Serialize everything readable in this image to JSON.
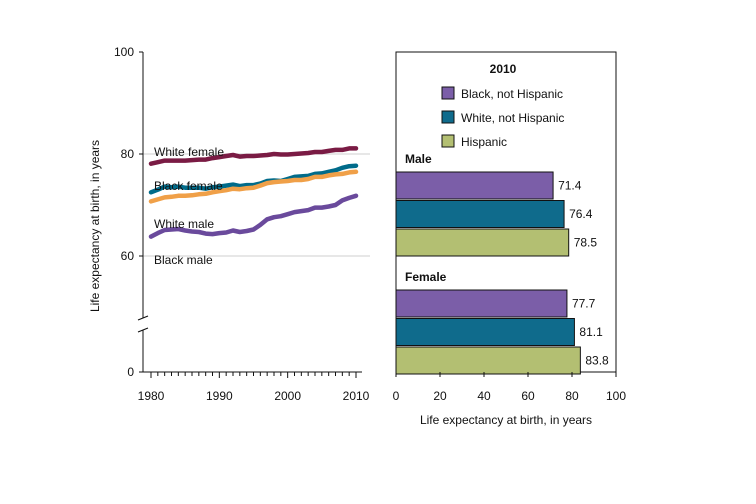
{
  "chart_data": [
    {
      "type": "line",
      "title": "",
      "xlabel": "",
      "ylabel": "Life expectancy at birth, in years",
      "xlim": [
        1980,
        2010
      ],
      "ylim": [
        0,
        100
      ],
      "axis_break": [
        0,
        50
      ],
      "x_ticks": [
        "1980",
        "1990",
        "2000",
        "2010"
      ],
      "y_ticks": [
        "0",
        "60",
        "80",
        "100"
      ],
      "gridlines_y": [
        60,
        80
      ],
      "series": [
        {
          "name": "White female",
          "color": "#7a1b44",
          "x": [
            1980,
            1981,
            1982,
            1983,
            1984,
            1985,
            1986,
            1987,
            1988,
            1989,
            1990,
            1991,
            1992,
            1993,
            1994,
            1995,
            1996,
            1997,
            1998,
            1999,
            2000,
            2001,
            2002,
            2003,
            2004,
            2005,
            2006,
            2007,
            2008,
            2009,
            2010
          ],
          "values": [
            78.1,
            78.4,
            78.7,
            78.7,
            78.7,
            78.7,
            78.8,
            78.9,
            78.9,
            79.2,
            79.4,
            79.6,
            79.8,
            79.5,
            79.6,
            79.6,
            79.7,
            79.8,
            80.0,
            79.9,
            79.9,
            80.0,
            80.1,
            80.2,
            80.4,
            80.4,
            80.6,
            80.8,
            80.8,
            81.1,
            81.1
          ]
        },
        {
          "name": "Black female",
          "color": "#006b8a",
          "x": [
            1980,
            1981,
            1982,
            1983,
            1984,
            1985,
            1986,
            1987,
            1988,
            1989,
            1990,
            1991,
            1992,
            1993,
            1994,
            1995,
            1996,
            1997,
            1998,
            1999,
            2000,
            2001,
            2002,
            2003,
            2004,
            2005,
            2006,
            2007,
            2008,
            2009,
            2010
          ],
          "values": [
            72.5,
            73.0,
            73.6,
            73.5,
            73.6,
            73.4,
            73.4,
            73.4,
            73.2,
            73.5,
            73.6,
            73.8,
            74.0,
            73.7,
            73.9,
            73.9,
            74.2,
            74.7,
            74.8,
            74.7,
            75.1,
            75.5,
            75.6,
            75.7,
            76.1,
            76.2,
            76.5,
            76.8,
            77.3,
            77.6,
            77.7
          ]
        },
        {
          "name": "White male",
          "color": "#f0a048",
          "x": [
            1980,
            1981,
            1982,
            1983,
            1984,
            1985,
            1986,
            1987,
            1988,
            1989,
            1990,
            1991,
            1992,
            1993,
            1994,
            1995,
            1996,
            1997,
            1998,
            1999,
            2000,
            2001,
            2002,
            2003,
            2004,
            2005,
            2006,
            2007,
            2008,
            2009,
            2010
          ],
          "values": [
            70.7,
            71.1,
            71.5,
            71.6,
            71.8,
            71.8,
            71.9,
            72.1,
            72.2,
            72.5,
            72.7,
            72.9,
            73.2,
            73.1,
            73.3,
            73.4,
            73.8,
            74.3,
            74.5,
            74.6,
            74.7,
            74.9,
            74.9,
            75.1,
            75.5,
            75.5,
            75.8,
            76.0,
            76.1,
            76.4,
            76.5
          ]
        },
        {
          "name": "Black male",
          "color": "#6a4a9c",
          "x": [
            1980,
            1981,
            1982,
            1983,
            1984,
            1985,
            1986,
            1987,
            1988,
            1989,
            1990,
            1991,
            1992,
            1993,
            1994,
            1995,
            1996,
            1997,
            1998,
            1999,
            2000,
            2001,
            2002,
            2003,
            2004,
            2005,
            2006,
            2007,
            2008,
            2009,
            2010
          ],
          "values": [
            63.8,
            64.5,
            65.1,
            65.2,
            65.3,
            65.0,
            64.8,
            64.7,
            64.4,
            64.3,
            64.5,
            64.6,
            65.0,
            64.7,
            64.9,
            65.2,
            66.1,
            67.2,
            67.6,
            67.8,
            68.2,
            68.6,
            68.8,
            69.0,
            69.5,
            69.5,
            69.7,
            70.0,
            70.9,
            71.4,
            71.8
          ]
        }
      ],
      "line_labels": {
        "white_female": "White female",
        "black_female": "Black female",
        "white_male": "White male",
        "black_male": "Black male"
      }
    },
    {
      "type": "bar",
      "orientation": "horizontal",
      "title": "",
      "legend_title": "2010",
      "legend_position": "top",
      "xlabel": "Life expectancy at birth, in years",
      "xlim": [
        0,
        100
      ],
      "x_ticks": [
        "0",
        "20",
        "40",
        "60",
        "80",
        "100"
      ],
      "groups": [
        "Male",
        "Female"
      ],
      "series": [
        {
          "name": "Black, not Hispanic",
          "color": "#7b5ea8",
          "values": [
            71.4,
            77.7
          ],
          "labels": [
            "71.4",
            "77.7"
          ]
        },
        {
          "name": "White, not Hispanic",
          "color": "#0f6b8c",
          "values": [
            76.4,
            81.1
          ],
          "labels": [
            "76.4",
            "81.1"
          ]
        },
        {
          "name": "Hispanic",
          "color": "#b3bf72",
          "values": [
            78.5,
            83.8
          ],
          "labels": [
            "78.5",
            "83.8"
          ]
        }
      ]
    }
  ]
}
